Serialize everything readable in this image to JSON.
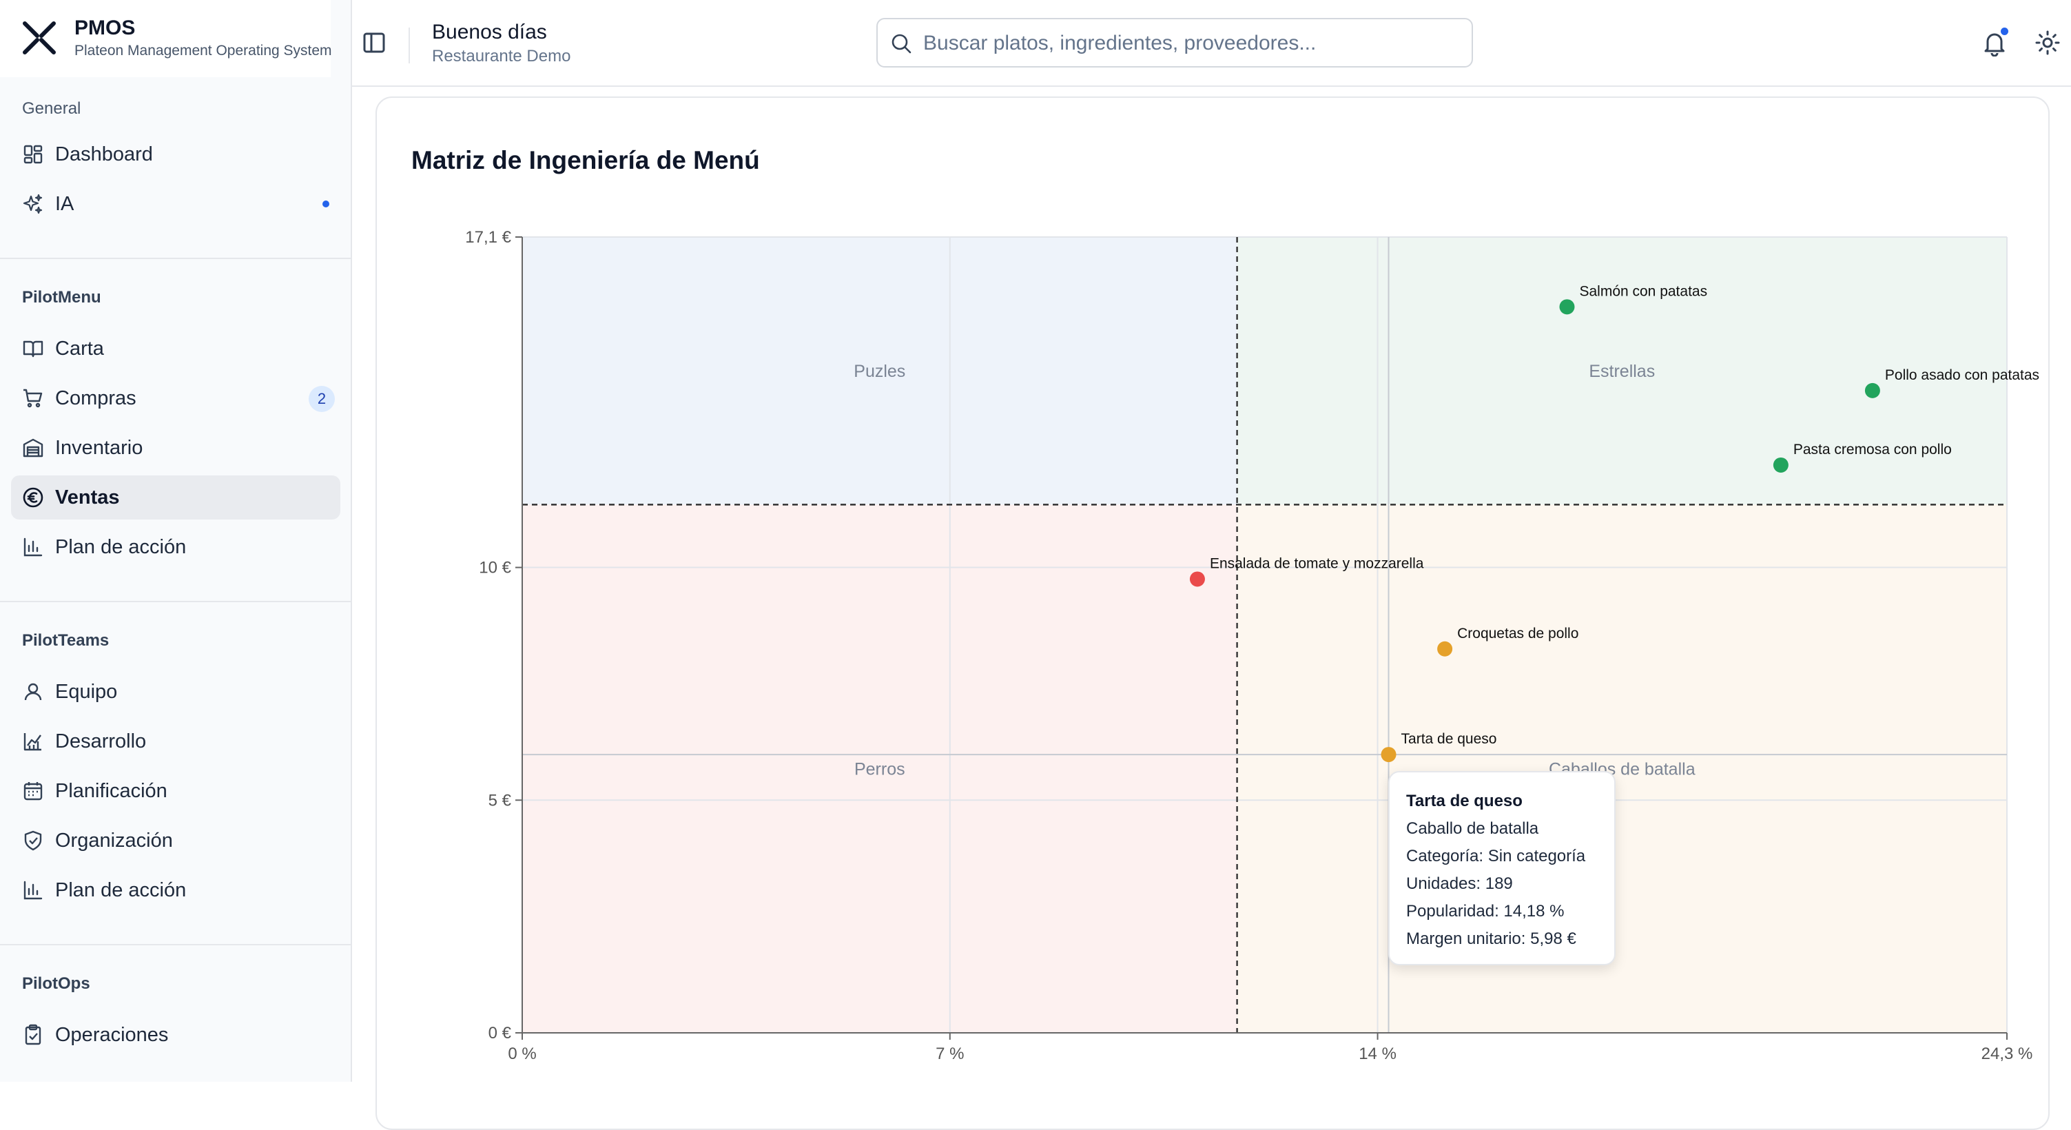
{
  "brand": {
    "name": "PMOS",
    "subtitle": "Plateon Management Operating System"
  },
  "sidebar": {
    "general": {
      "title": "General",
      "items": [
        {
          "label": "Dashboard",
          "icon": "dashboard-grid-icon"
        },
        {
          "label": "IA",
          "icon": "sparkles-icon",
          "has_dot": true
        }
      ]
    },
    "pilotmenu": {
      "title": "PilotMenu",
      "items": [
        {
          "label": "Carta",
          "icon": "book-open-icon"
        },
        {
          "label": "Compras",
          "icon": "shopping-cart-icon",
          "badge": "2"
        },
        {
          "label": "Inventario",
          "icon": "warehouse-icon"
        },
        {
          "label": "Ventas",
          "icon": "euro-icon",
          "active": true
        },
        {
          "label": "Plan de acción",
          "icon": "bar-chart-icon"
        }
      ]
    },
    "pilotteams": {
      "title": "PilotTeams",
      "items": [
        {
          "label": "Equipo",
          "icon": "user-icon"
        },
        {
          "label": "Desarrollo",
          "icon": "line-chart-icon"
        },
        {
          "label": "Planificación",
          "icon": "calendar-icon"
        },
        {
          "label": "Organización",
          "icon": "shield-check-icon"
        },
        {
          "label": "Plan de acción",
          "icon": "bar-chart-icon"
        }
      ]
    },
    "pilotops": {
      "title": "PilotOps",
      "items": [
        {
          "label": "Operaciones",
          "icon": "clipboard-check-icon"
        }
      ]
    }
  },
  "header": {
    "greeting": "Buenos días",
    "restaurant": "Restaurante Demo",
    "search": {
      "placeholder": "Buscar platos, ingredientes, proveedores...",
      "value": ""
    },
    "notifications_unread": true
  },
  "card": {
    "title": "Matriz de Ingeniería de Menú"
  },
  "chart_data": {
    "type": "scatter",
    "title": "Matriz de Ingeniería de Menú",
    "x_axis": {
      "min": 0,
      "max": 24.3,
      "ticks": [
        0,
        7,
        14,
        24.3
      ],
      "tick_labels": [
        "0 %",
        "7 %",
        "14 %",
        "24,3 %"
      ]
    },
    "y_axis": {
      "min": 0,
      "max": 17.1,
      "ticks": [
        0,
        5,
        10,
        17.1
      ],
      "tick_labels": [
        "0 €",
        "5 €",
        "10 €",
        "17,1 €"
      ]
    },
    "thresholds": {
      "popularity": 11.7,
      "margin": 11.35
    },
    "crosshair": {
      "x": 14.18,
      "y": 5.98
    },
    "quadrants": [
      {
        "label": "Puzles",
        "color": "#eef3fa"
      },
      {
        "label": "Estrellas",
        "color": "#eef6f2"
      },
      {
        "label": "Perros",
        "color": "#fdf1f0"
      },
      {
        "label": "Caballos de batalla",
        "color": "#fdf7ef"
      }
    ],
    "points": [
      {
        "name": "Salmón con patatas",
        "x": 17.1,
        "y": 15.6,
        "color": "#22a45d"
      },
      {
        "name": "Pollo asado con patatas",
        "x": 22.1,
        "y": 13.8,
        "color": "#22a45d"
      },
      {
        "name": "Pasta cremosa con pollo",
        "x": 20.6,
        "y": 12.2,
        "color": "#22a45d"
      },
      {
        "name": "Ensalada de tomate y mozzarella",
        "x": 11.05,
        "y": 9.75,
        "color": "#ea4b4b"
      },
      {
        "name": "Croquetas de pollo",
        "x": 15.1,
        "y": 8.25,
        "color": "#e5a12a"
      },
      {
        "name": "Tarta de queso",
        "x": 14.18,
        "y": 5.98,
        "color": "#e5a12a"
      }
    ]
  },
  "tooltip": {
    "title": "Tarta de queso",
    "category_label": "Caballo de batalla",
    "lines": [
      "Categoría: Sin categoría",
      "Unidades: 189",
      "Popularidad: 14,18 %",
      "Margen unitario: 5,98 €"
    ]
  }
}
